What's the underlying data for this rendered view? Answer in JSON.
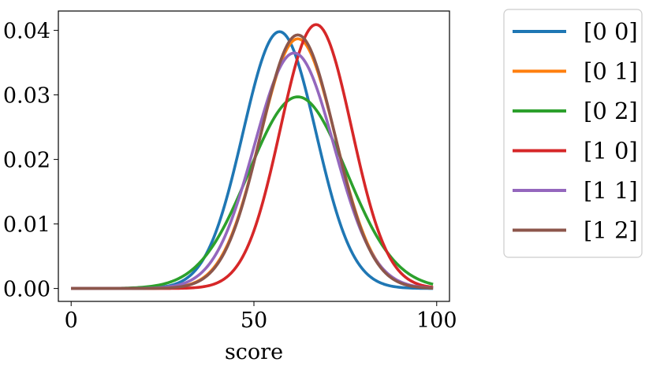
{
  "chart_data": {
    "type": "line",
    "xlabel": "score",
    "ylabel": "",
    "xlim": [
      -3.5,
      103.5
    ],
    "ylim": [
      -0.002,
      0.043
    ],
    "xticks": [
      0,
      50,
      100
    ],
    "yticks": [
      0.0,
      0.01,
      0.02,
      0.03,
      0.04
    ],
    "xtick_labels": [
      "0",
      "50",
      "100"
    ],
    "ytick_labels": [
      "0.00",
      "0.01",
      "0.02",
      "0.03",
      "0.04"
    ],
    "grid": false,
    "legend_position": "outside-right",
    "x_range": [
      0,
      99
    ],
    "series": [
      {
        "name": "[0 0]",
        "color": "#1f77b4",
        "peak_x": 57,
        "peak_y": 0.0398,
        "mean": 57,
        "sd": 10.0
      },
      {
        "name": "[0 1]",
        "color": "#ff7f0e",
        "peak_x": 62,
        "peak_y": 0.0387,
        "mean": 62,
        "sd": 10.3
      },
      {
        "name": "[0 2]",
        "color": "#2ca02c",
        "peak_x": 62,
        "peak_y": 0.0297,
        "mean": 62,
        "sd": 13.4
      },
      {
        "name": "[1 0]",
        "color": "#d62728",
        "peak_x": 67,
        "peak_y": 0.0409,
        "mean": 67,
        "sd": 9.75
      },
      {
        "name": "[1 1]",
        "color": "#9467bd",
        "peak_x": 61,
        "peak_y": 0.0365,
        "mean": 61,
        "sd": 10.9
      },
      {
        "name": "[1 2]",
        "color": "#8c564b",
        "peak_x": 62,
        "peak_y": 0.0393,
        "mean": 62,
        "sd": 10.15
      }
    ]
  }
}
